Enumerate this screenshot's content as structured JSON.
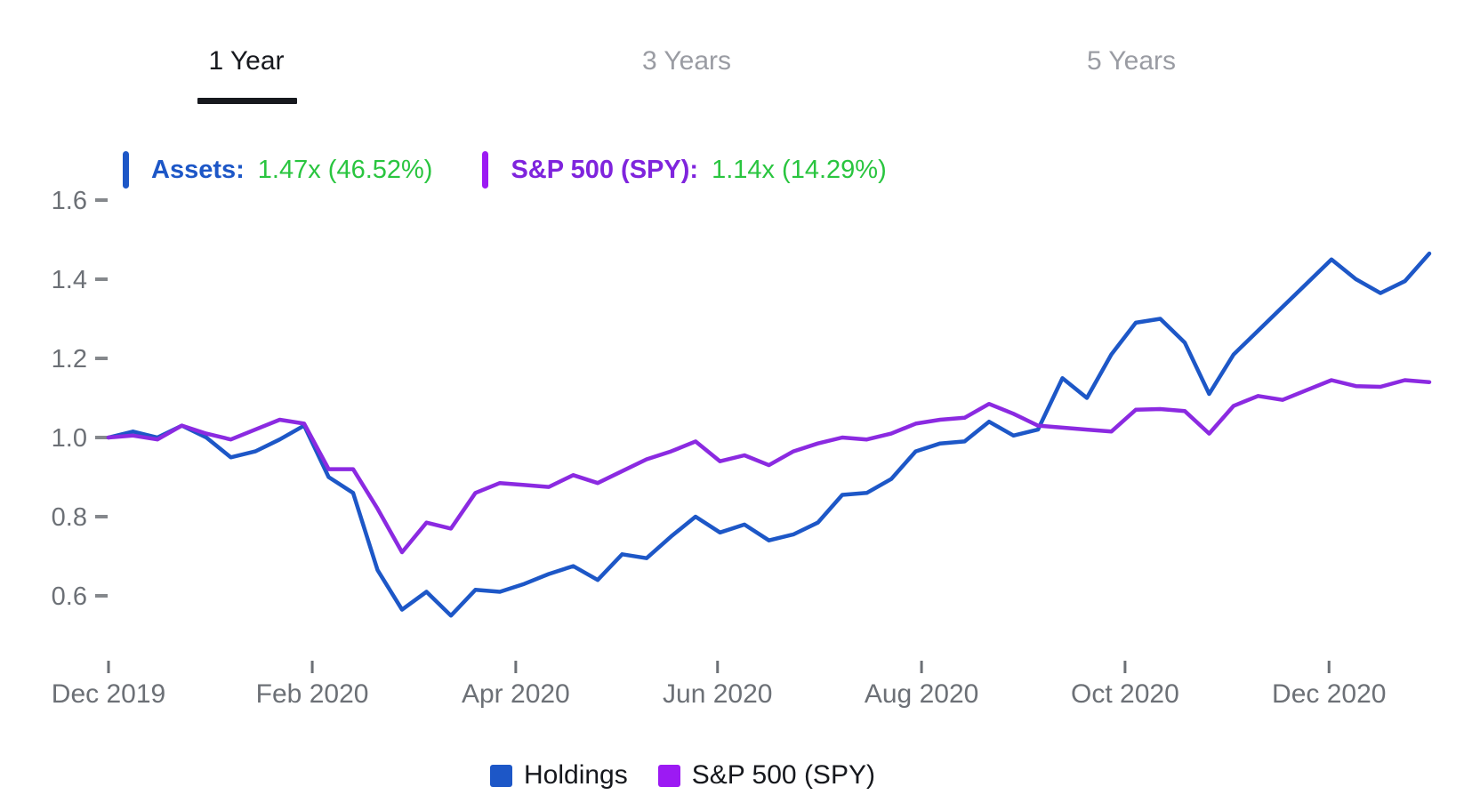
{
  "tabs": {
    "items": [
      {
        "label": "1 Year",
        "active": true
      },
      {
        "label": "3 Years",
        "active": false
      },
      {
        "label": "5 Years",
        "active": false
      }
    ]
  },
  "stats": {
    "assets_label": "Assets:",
    "assets_value": "1.47x (46.52%)",
    "spy_label": "S&P 500 (SPY):",
    "spy_value": "1.14x (14.29%)"
  },
  "legend": {
    "items": [
      {
        "label": "Holdings",
        "color": "#1d57c7"
      },
      {
        "label": "S&P 500 (SPY)",
        "color": "#9c1af3"
      }
    ]
  },
  "colors": {
    "accent_blue": "#1d57c7",
    "accent_purple": "#9c1af3",
    "text_purple": "#7f24dd",
    "line_purple": "#8b2ae1",
    "value_green": "#29c53f",
    "text_dark": "#17191e",
    "text_gray_inactive": "#9a9ca3",
    "axis_gray": "#6c7076",
    "tick_gray": "#85888c"
  },
  "chart_data": {
    "type": "line",
    "title": "",
    "xlabel": "",
    "ylabel": "",
    "x_unit": "week",
    "grid": false,
    "legend_position": "bottom",
    "ylim": [
      0.5,
      1.7
    ],
    "y_ticks": [
      0.6,
      0.8,
      1.0,
      1.2,
      1.4,
      1.6
    ],
    "x_tick_labels": [
      "Dec 2019",
      "Feb 2020",
      "Apr 2020",
      "Jun 2020",
      "Aug 2020",
      "Oct 2020",
      "Dec 2020"
    ],
    "x_tick_positions": [
      0,
      8.33,
      16.65,
      24.9,
      33.24,
      41.56,
      49.9
    ],
    "series": [
      {
        "name": "Holdings",
        "color": "#1d57c7",
        "values": [
          1.0,
          1.015,
          1.0,
          1.03,
          1.0,
          0.95,
          0.965,
          0.995,
          1.03,
          0.9,
          0.86,
          0.665,
          0.565,
          0.61,
          0.55,
          0.615,
          0.61,
          0.63,
          0.655,
          0.675,
          0.64,
          0.705,
          0.695,
          0.75,
          0.8,
          0.76,
          0.78,
          0.74,
          0.755,
          0.785,
          0.855,
          0.86,
          0.895,
          0.965,
          0.985,
          0.99,
          1.04,
          1.005,
          1.02,
          1.15,
          1.1,
          1.21,
          1.29,
          1.3,
          1.24,
          1.11,
          1.21,
          1.27,
          1.33,
          1.39,
          1.45,
          1.4,
          1.365,
          1.395,
          1.465
        ]
      },
      {
        "name": "S&P 500 (SPY)",
        "color": "#8b2ae1",
        "values": [
          1.0,
          1.005,
          0.995,
          1.03,
          1.01,
          0.995,
          1.02,
          1.045,
          1.035,
          0.92,
          0.92,
          0.82,
          0.71,
          0.785,
          0.77,
          0.86,
          0.885,
          0.88,
          0.875,
          0.905,
          0.885,
          0.915,
          0.945,
          0.965,
          0.99,
          0.94,
          0.955,
          0.93,
          0.965,
          0.985,
          1.0,
          0.995,
          1.01,
          1.035,
          1.045,
          1.05,
          1.085,
          1.06,
          1.03,
          1.025,
          1.02,
          1.015,
          1.07,
          1.072,
          1.067,
          1.01,
          1.08,
          1.105,
          1.095,
          1.12,
          1.145,
          1.13,
          1.128,
          1.145,
          1.14
        ]
      }
    ]
  }
}
